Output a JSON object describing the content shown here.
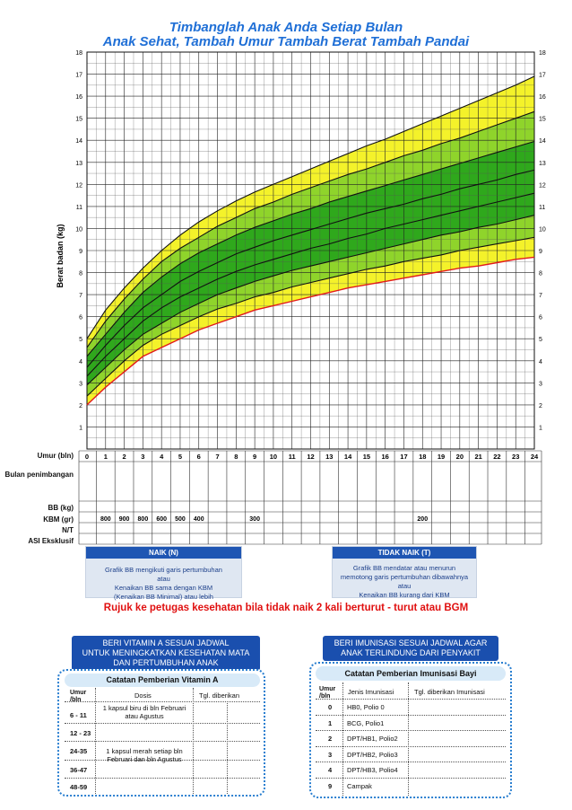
{
  "title_line1": "Timbanglah Anak Anda Setiap Bulan",
  "title_line2": "Anak Sehat, Tambah Umur  Tambah Berat  Tambah Pandai",
  "chart_data": {
    "type": "area",
    "ylabel": "Berat badan (kg)",
    "xlabel": "Umur (bln)",
    "xlim": [
      0,
      24
    ],
    "ylim": [
      0,
      18
    ],
    "x_ticks": [
      "0",
      "1",
      "2",
      "3",
      "4",
      "5",
      "6",
      "7",
      "8",
      "9",
      "10",
      "11",
      "12",
      "13",
      "14",
      "15",
      "16",
      "17",
      "18",
      "19",
      "20",
      "21",
      "22",
      "23",
      "24"
    ],
    "y_ticks": [
      "1",
      "2",
      "3",
      "4",
      "5",
      "6",
      "7",
      "8",
      "9",
      "10",
      "11",
      "12",
      "13",
      "14",
      "15",
      "16",
      "17",
      "18"
    ],
    "x": [
      0,
      1,
      2,
      3,
      4,
      5,
      6,
      7,
      8,
      9,
      10,
      11,
      12,
      13,
      14,
      15,
      16,
      17,
      18,
      19,
      20,
      21,
      22,
      23,
      24
    ],
    "series": [
      {
        "name": "BGM (red)",
        "values": [
          2.0,
          2.8,
          3.5,
          4.2,
          4.6,
          5.0,
          5.4,
          5.7,
          6.0,
          6.3,
          6.5,
          6.7,
          6.9,
          7.1,
          7.3,
          7.45,
          7.6,
          7.75,
          7.9,
          8.05,
          8.2,
          8.3,
          8.45,
          8.6,
          8.7
        ]
      },
      {
        "name": "line 2",
        "values": [
          2.4,
          3.2,
          4.0,
          4.7,
          5.2,
          5.6,
          6.0,
          6.35,
          6.6,
          6.9,
          7.1,
          7.35,
          7.55,
          7.75,
          7.95,
          8.15,
          8.3,
          8.5,
          8.65,
          8.8,
          9.0,
          9.15,
          9.3,
          9.45,
          9.6
        ]
      },
      {
        "name": "line 3",
        "values": [
          2.9,
          3.7,
          4.5,
          5.2,
          5.7,
          6.2,
          6.6,
          7.0,
          7.3,
          7.6,
          7.85,
          8.1,
          8.3,
          8.5,
          8.7,
          8.9,
          9.1,
          9.3,
          9.5,
          9.7,
          9.85,
          10.05,
          10.2,
          10.4,
          10.6
        ]
      },
      {
        "name": "line 4",
        "values": [
          3.3,
          4.2,
          5.0,
          5.8,
          6.4,
          6.9,
          7.3,
          7.7,
          8.05,
          8.35,
          8.6,
          8.85,
          9.1,
          9.3,
          9.55,
          9.75,
          10.0,
          10.2,
          10.4,
          10.6,
          10.8,
          11.0,
          11.2,
          11.4,
          11.6
        ]
      },
      {
        "name": "line 5",
        "values": [
          3.7,
          4.7,
          5.6,
          6.4,
          7.0,
          7.6,
          8.05,
          8.45,
          8.85,
          9.15,
          9.45,
          9.7,
          9.95,
          10.2,
          10.45,
          10.7,
          10.9,
          11.1,
          11.35,
          11.55,
          11.8,
          12.0,
          12.2,
          12.45,
          12.65
        ]
      },
      {
        "name": "line 6",
        "values": [
          4.2,
          5.2,
          6.2,
          7.1,
          7.8,
          8.4,
          8.9,
          9.3,
          9.7,
          10.05,
          10.35,
          10.65,
          10.9,
          11.2,
          11.45,
          11.7,
          11.95,
          12.2,
          12.45,
          12.7,
          12.95,
          13.2,
          13.45,
          13.7,
          13.95
        ]
      },
      {
        "name": "line 7",
        "values": [
          4.6,
          5.8,
          6.8,
          7.7,
          8.5,
          9.1,
          9.6,
          10.1,
          10.5,
          10.9,
          11.2,
          11.55,
          11.85,
          12.15,
          12.45,
          12.7,
          13.0,
          13.3,
          13.55,
          13.85,
          14.1,
          14.4,
          14.7,
          15.0,
          15.3
        ]
      },
      {
        "name": "line 8",
        "values": [
          5.0,
          6.3,
          7.3,
          8.2,
          9.0,
          9.7,
          10.3,
          10.8,
          11.25,
          11.65,
          12.0,
          12.35,
          12.7,
          13.05,
          13.4,
          13.75,
          14.05,
          14.4,
          14.75,
          15.1,
          15.45,
          15.8,
          16.15,
          16.5,
          16.9
        ]
      }
    ]
  },
  "table": {
    "umur_label": "Umur (bln)",
    "ages": [
      "0",
      "1",
      "2",
      "3",
      "4",
      "5",
      "6",
      "7",
      "8",
      "9",
      "10",
      "11",
      "12",
      "13",
      "14",
      "15",
      "16",
      "17",
      "18",
      "19",
      "20",
      "21",
      "22",
      "23",
      "24"
    ],
    "row_bulan": "Bulan penimbangan",
    "row_bb": "BB (kg)",
    "row_kbm": "KBM (gr)",
    "row_nt": "N/T",
    "row_asi": "ASI Eksklusif",
    "kbm_values": [
      "800",
      "900",
      "800",
      "600",
      "500",
      "400",
      "300",
      "200"
    ]
  },
  "naik": {
    "header": "NAIK (N)",
    "line1": "Grafik BB mengikuti garis pertumbuhan",
    "line2": "atau",
    "line3": "Kenaikan BB sama dengan KBM",
    "line4": "(Kenaikan BB Minimal) atau lebih"
  },
  "tidak_naik": {
    "header": "TIDAK NAIK (T)",
    "line1": "Grafik BB mendatar atau menurun",
    "line2": "memotong garis pertumbuhan dibawahnya",
    "line3": "atau",
    "line4": "Kenaikan BB kurang dari KBM"
  },
  "refer_text": "Rujuk ke petugas kesehatan bila tidak naik 2 kali berturut - turut atau BGM",
  "vitamin": {
    "title1": "BERI VITAMIN A SESUAI JADWAL",
    "title2": "UNTUK MENINGKATKAN KESEHATAN MATA",
    "title3": "DAN PERTUMBUHAN ANAK",
    "head": "Catatan Pemberian Vitamin A",
    "col_umur": "Umur /bln",
    "col_dosis": "Dosis",
    "col_tgl": "Tgl. diberikan",
    "ages": [
      "6 - 11",
      "12 - 23",
      "24-35",
      "36-47",
      "48-59"
    ],
    "dose1": "1 kapsul biru di bln Februari atau Agustus",
    "dose2": "1 kapsul merah setiap bln Februari dan bln Agustus"
  },
  "imunisasi": {
    "title1": "BERI IMUNISASI SESUAI JADWAL AGAR",
    "title2": "ANAK TERLINDUNG DARI PENYAKIT",
    "head": "Catatan Pemberian Imunisasi Bayi",
    "col_umur": "Umur /bln",
    "col_jenis": "Jenis Imunisasi",
    "col_tgl": "Tgl. diberikan Imunisasi",
    "rows": [
      {
        "umur": "0",
        "jenis": "HB0, Polio 0"
      },
      {
        "umur": "1",
        "jenis": "BCG, Polio1"
      },
      {
        "umur": "2",
        "jenis": "DPT/HB1, Polio2"
      },
      {
        "umur": "3",
        "jenis": "DPT/HB2, Polio3"
      },
      {
        "umur": "4",
        "jenis": "DPT/HB3, Polio4"
      },
      {
        "umur": "9",
        "jenis": "Campak"
      }
    ]
  },
  "colors": {
    "yellow": "#f4f22a",
    "light_green": "#8fd42b",
    "dark_green": "#2fa81c",
    "bgm_red": "#e21b1b",
    "title_blue": "#1f6fd6",
    "panel_blue": "#1a4fae"
  }
}
